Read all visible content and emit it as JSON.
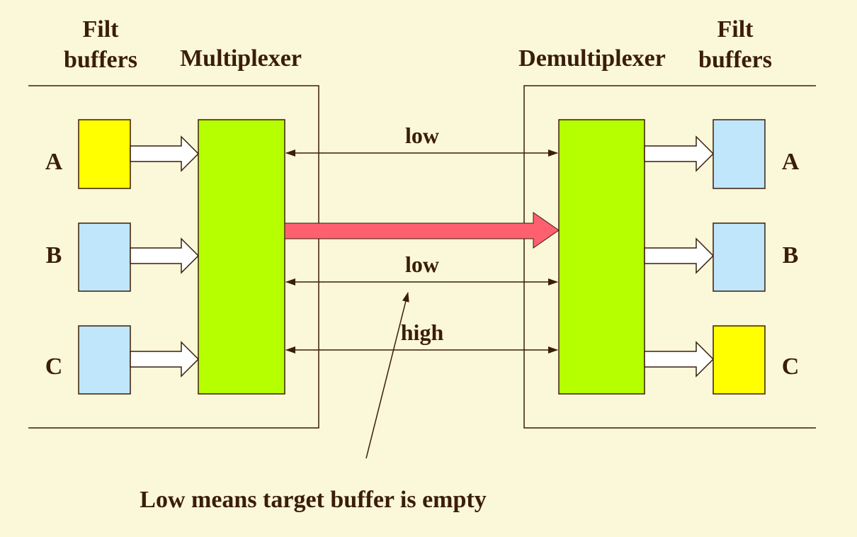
{
  "headers": {
    "left_filt": "Filt",
    "left_buffers": "buffers",
    "multiplexer": "Multiplexer",
    "demultiplexer": "Demultiplexer",
    "right_filt": "Filt",
    "right_buffers": "buffers"
  },
  "left_buffers": [
    {
      "label": "A",
      "color": "#ffff00"
    },
    {
      "label": "B",
      "color": "#bfe6fb"
    },
    {
      "label": "C",
      "color": "#bfe6fb"
    }
  ],
  "right_buffers": [
    {
      "label": "A",
      "color": "#bfe6fb"
    },
    {
      "label": "B",
      "color": "#bfe6fb"
    },
    {
      "label": "C",
      "color": "#ffff00"
    }
  ],
  "signals": {
    "line1": "low",
    "line2": "low",
    "line3": "high"
  },
  "annotation": "Low means target buffer is empty",
  "colors": {
    "background": "#fbf7d9",
    "mux": "#b6ff00",
    "data_arrow": "#ff6070",
    "text": "#3a1d0a",
    "line": "#3a1d0a"
  }
}
